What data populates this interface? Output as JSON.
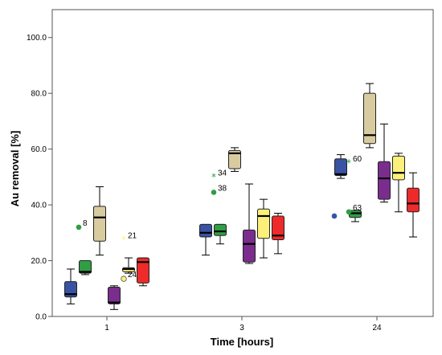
{
  "chart_data": {
    "type": "boxplot",
    "xlabel": "Time [hours]",
    "ylabel": "Au removal [%]",
    "ylim": [
      0,
      110
    ],
    "yticks": [
      "0.0",
      "20.0",
      "40.0",
      "60.0",
      "80.0",
      "100.0"
    ],
    "categories": [
      "1",
      "3",
      "24"
    ],
    "grid": false,
    "legend": "none",
    "series_colors": [
      "#3953a4",
      "#2f9e44",
      "#d8cba0",
      "#7b2d8e",
      "#fdf07a",
      "#ee2a2a"
    ],
    "boxes": [
      [
        {
          "min": 4.5,
          "q1": 7,
          "median": 8,
          "q3": 12.5,
          "max": 17
        },
        {
          "min": 15,
          "q1": 15.5,
          "median": 16,
          "q3": 20,
          "max": 20
        },
        {
          "min": 22,
          "q1": 27,
          "median": 35.5,
          "q3": 39.5,
          "max": 46.5
        },
        {
          "min": 2.5,
          "q1": 4.5,
          "median": 5,
          "q3": 10.5,
          "max": 11
        },
        {
          "min": 15.5,
          "q1": 16,
          "median": 17,
          "q3": 17.5,
          "max": 21
        },
        {
          "min": 11,
          "q1": 12,
          "median": 19.5,
          "q3": 21,
          "max": 21
        }
      ],
      [
        {
          "min": 22,
          "q1": 28.5,
          "median": 30,
          "q3": 33,
          "max": 33
        },
        {
          "min": 26,
          "q1": 29,
          "median": 30.5,
          "q3": 33,
          "max": 33
        },
        {
          "min": 52,
          "q1": 53,
          "median": 58.5,
          "q3": 59.5,
          "max": 60.5
        },
        {
          "min": 19,
          "q1": 19.5,
          "median": 26,
          "q3": 31,
          "max": 47.5
        },
        {
          "min": 21,
          "q1": 28,
          "median": 36,
          "q3": 38.5,
          "max": 42
        },
        {
          "min": 22.5,
          "q1": 27.5,
          "median": 29,
          "q3": 36,
          "max": 37
        }
      ],
      [
        {
          "min": 49.5,
          "q1": 50.5,
          "median": 51,
          "q3": 56.5,
          "max": 58
        },
        {
          "min": 34,
          "q1": 35.5,
          "median": 37,
          "q3": 38,
          "max": 38
        },
        {
          "min": 60.5,
          "q1": 62,
          "median": 65,
          "q3": 80,
          "max": 83.5
        },
        {
          "min": 41,
          "q1": 42,
          "median": 49.5,
          "q3": 55.5,
          "max": 69
        },
        {
          "min": 37.5,
          "q1": 49,
          "median": 51.5,
          "q3": 57.5,
          "max": 58.5
        },
        {
          "min": 28.5,
          "q1": 37.5,
          "median": 40.5,
          "q3": 46,
          "max": 51.5
        }
      ]
    ],
    "outliers": [
      {
        "category": "1",
        "series": 1,
        "value": 32,
        "kind": "circle",
        "label": "8"
      },
      {
        "category": "1",
        "series": 4,
        "value": 27.5,
        "kind": "star",
        "label": "21"
      },
      {
        "category": "1",
        "series": 4,
        "value": 13.5,
        "kind": "circle",
        "label": "24"
      },
      {
        "category": "3",
        "series": 1,
        "value": 50,
        "kind": "star",
        "label": "34"
      },
      {
        "category": "3",
        "series": 1,
        "value": 44.5,
        "kind": "circle",
        "label": "38"
      },
      {
        "category": "24",
        "series": 0,
        "value": 36,
        "kind": "circle",
        "label": ""
      },
      {
        "category": "24",
        "series": 1,
        "value": 55,
        "kind": "star",
        "label": "60"
      },
      {
        "category": "24",
        "series": 1,
        "value": 37.5,
        "kind": "circle",
        "label": "63"
      }
    ]
  }
}
